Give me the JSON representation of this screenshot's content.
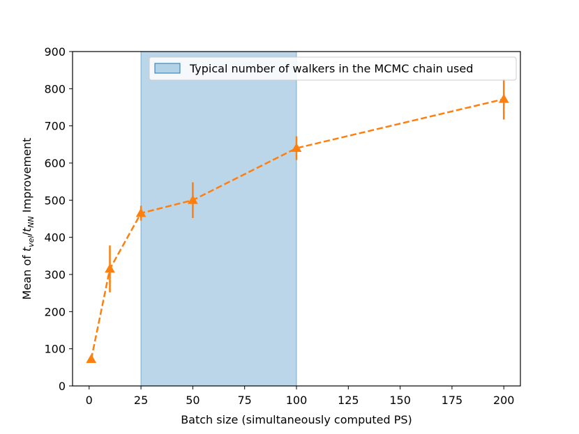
{
  "chart_data": {
    "type": "line",
    "title": "",
    "xlabel": "Batch size (simultaneously computed PS)",
    "ylabel": {
      "prefix": "Mean of ",
      "t1": "t",
      "sub1": "vel",
      "slash": "/",
      "t2": "t",
      "sub2": "NN",
      "suffix": " Improvement"
    },
    "xlim": [
      -8,
      208
    ],
    "ylim": [
      0,
      900
    ],
    "xticks": [
      0,
      25,
      50,
      75,
      100,
      125,
      150,
      175,
      200
    ],
    "yticks": [
      0,
      100,
      200,
      300,
      400,
      500,
      600,
      700,
      800,
      900
    ],
    "grid": false,
    "legend_position": "top-right",
    "shaded_region": {
      "label": "Typical number of walkers in the MCMC chain used",
      "x_start": 25,
      "x_end": 100,
      "color": "#1f77b4"
    },
    "series": [
      {
        "color": "#ff7f0e",
        "linestyle": "dashed",
        "marker": "triangle-up",
        "x": [
          1,
          10,
          25,
          50,
          100,
          200
        ],
        "y": [
          72,
          315,
          465,
          500,
          640,
          772
        ],
        "yerr": [
          6,
          63,
          20,
          48,
          32,
          55
        ]
      }
    ]
  }
}
